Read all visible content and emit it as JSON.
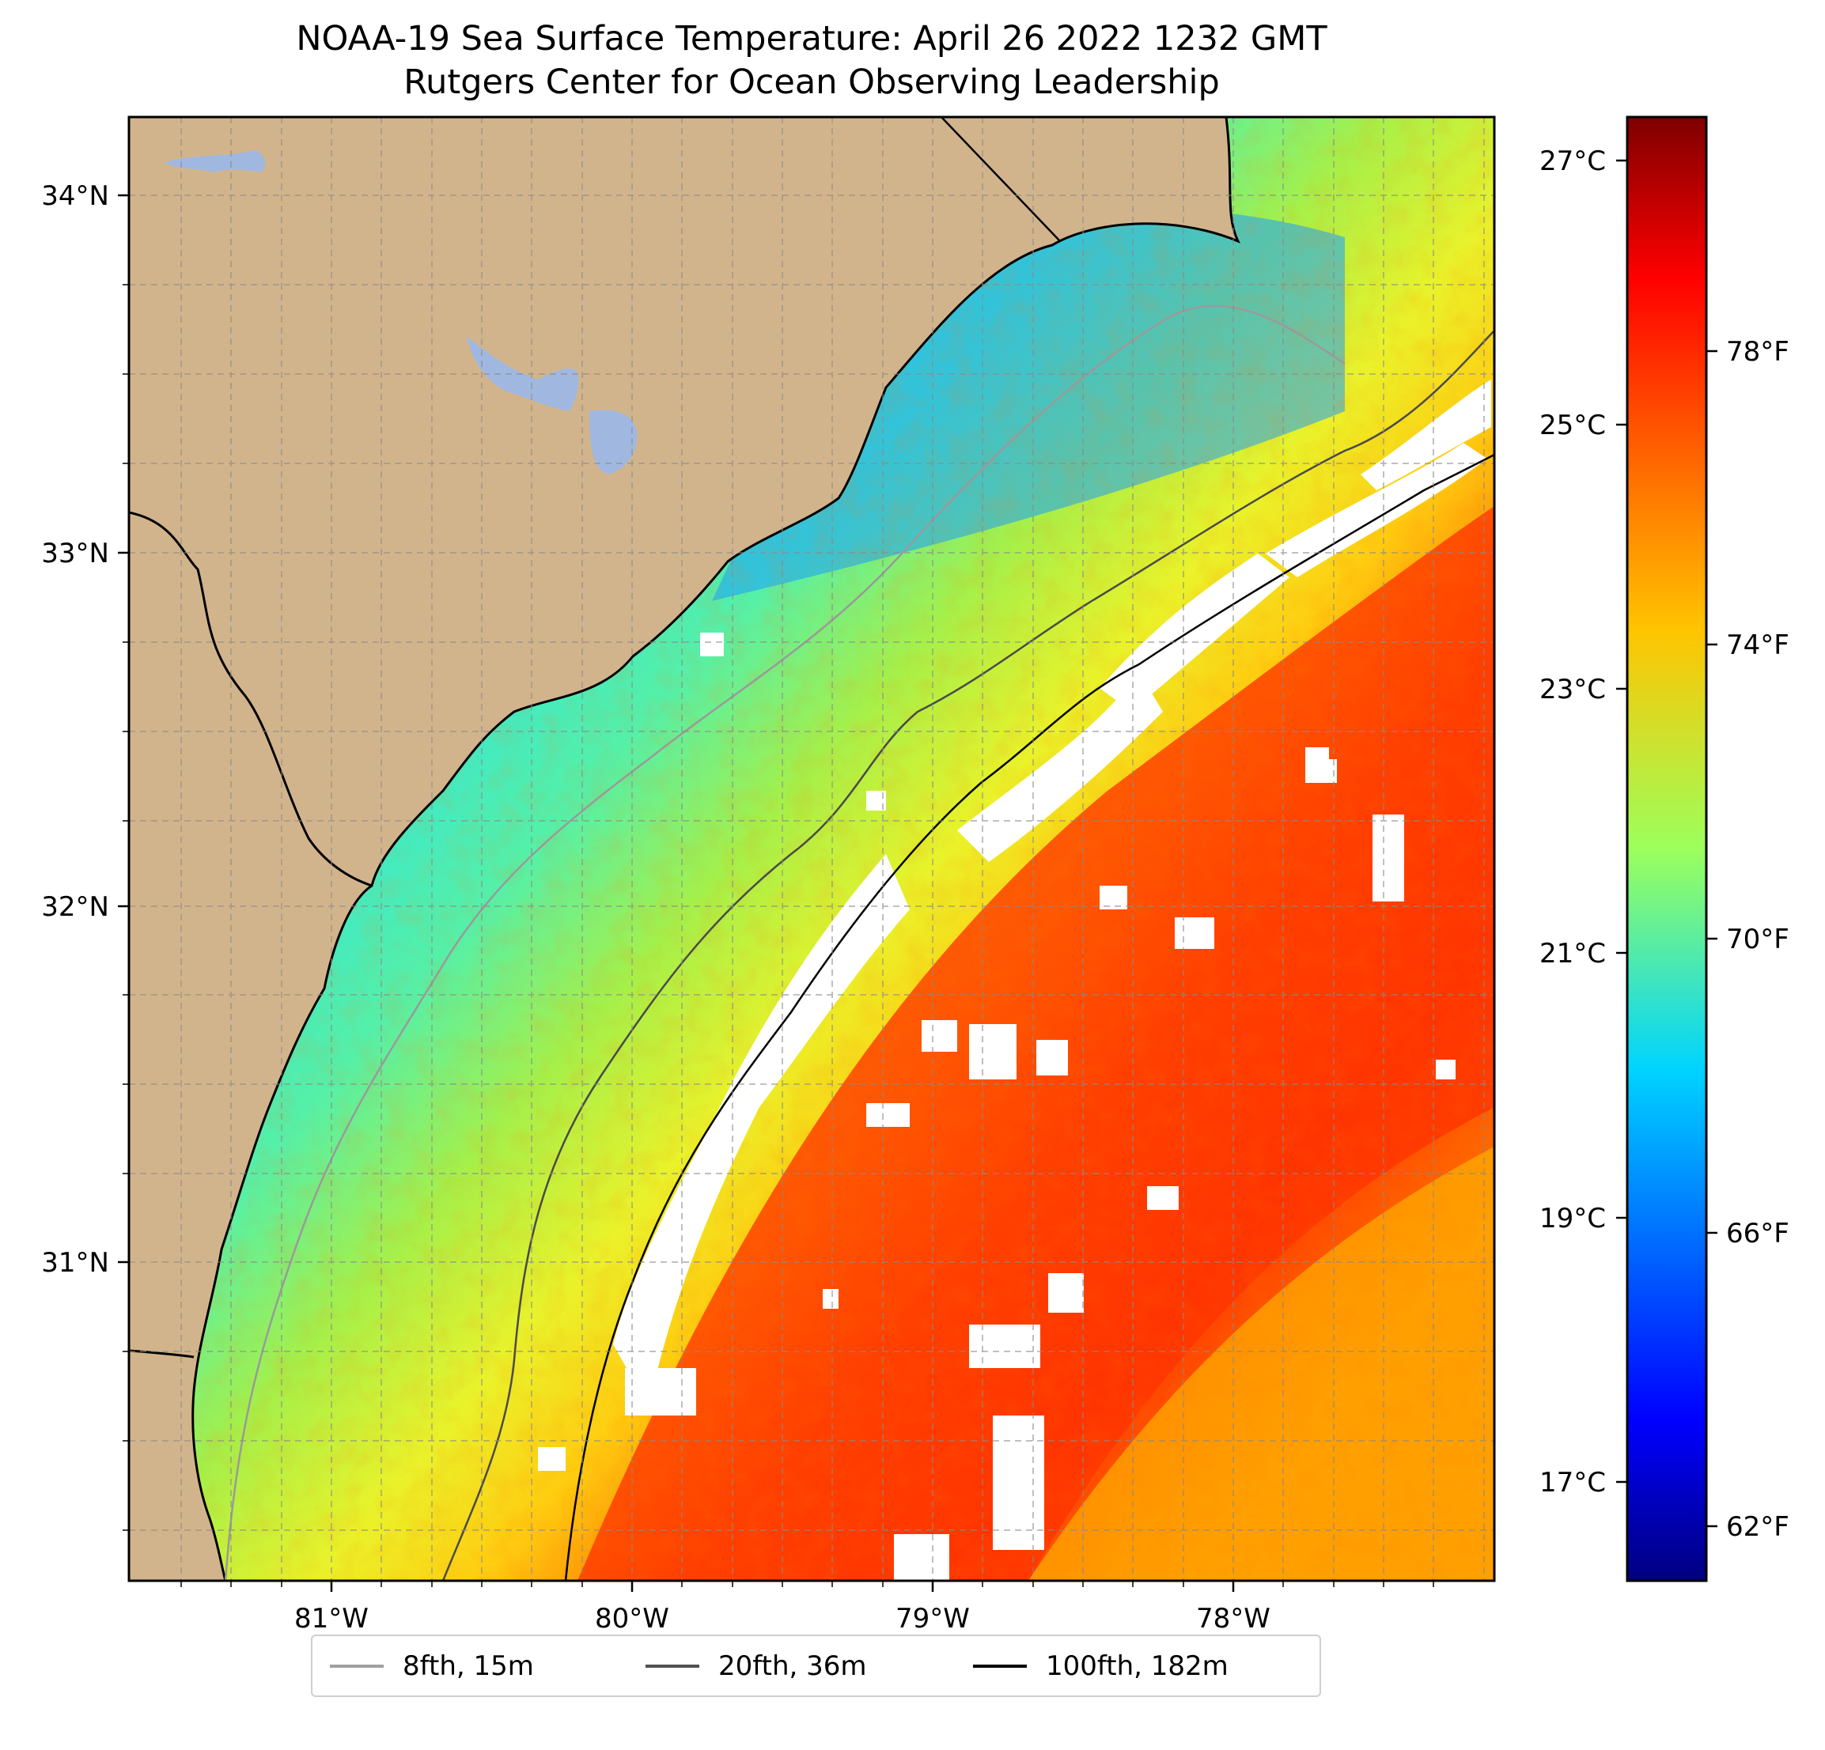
{
  "title": {
    "line1": "NOAA-19 Sea Surface Temperature: April 26 2022 1232 GMT",
    "line2": "Rutgers Center for Ocean Observing Leadership"
  },
  "map": {
    "lon_range": [
      -81.67,
      -77.13
    ],
    "lat_range": [
      30.07,
      34.22
    ],
    "lon_ticks": [
      "81°W",
      "80°W",
      "79°W",
      "78°W"
    ],
    "lat_ticks": [
      "34°N",
      "33°N",
      "32°N",
      "31°N"
    ],
    "land_color": "#d2b48c",
    "lake_color": "#a0b8e0",
    "cloud_mask_color": "#ffffff",
    "colormap": "jet",
    "gridlines": true
  },
  "colorbar": {
    "celsius_ticks": [
      "27°C",
      "25°C",
      "23°C",
      "21°C",
      "19°C",
      "17°C"
    ],
    "fahrenheit_ticks": [
      "78°F",
      "74°F",
      "70°F",
      "66°F",
      "62°F"
    ],
    "range_f": [
      61,
      81
    ]
  },
  "legend": {
    "items": [
      {
        "label": "8fth, 15m",
        "color": "#a0a0a0"
      },
      {
        "label": "20fth, 36m",
        "color": "#505050"
      },
      {
        "label": "100fth, 182m",
        "color": "#000000"
      }
    ]
  }
}
